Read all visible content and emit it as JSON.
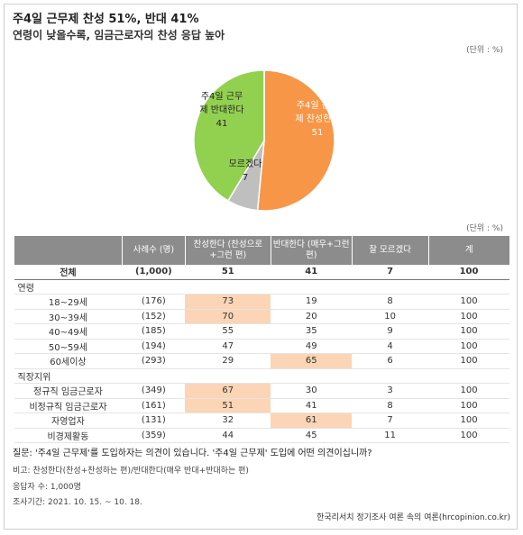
{
  "header": {
    "title": "주4일 근무제 찬성 51%, 반대 41%",
    "subtitle": "연령이 낮을수록, 임금근로자의 찬성 응답 높아",
    "unit": "(단위 : %)"
  },
  "chart_data": {
    "type": "pie",
    "categories": [
      "주4일 근무제 찬성한다",
      "모르겠다",
      "주4일 근무제 반대한다"
    ],
    "values": [
      51,
      7,
      41
    ],
    "colors": [
      "#f79646",
      "#bfbfbf",
      "#92d050"
    ]
  },
  "table": {
    "unit": "(단위 : %)",
    "header": [
      "사례수 (명)",
      "찬성한다 (찬성으로+그런 편)",
      "반대한다 (매우+그런 편)",
      "잘 모르겠다",
      "계"
    ],
    "rows": [
      {
        "label": "전체",
        "cells": [
          "(1,000)",
          "51",
          "41",
          "7",
          "100"
        ]
      },
      {
        "section": "연령"
      },
      {
        "label": "18~29세",
        "cells": [
          "(176)",
          "73",
          "19",
          "8",
          "100"
        ],
        "highlight": [
          1
        ]
      },
      {
        "label": "30~39세",
        "cells": [
          "(152)",
          "70",
          "20",
          "10",
          "100"
        ],
        "highlight": [
          1
        ]
      },
      {
        "label": "40~49세",
        "cells": [
          "(185)",
          "55",
          "35",
          "9",
          "100"
        ]
      },
      {
        "label": "50~59세",
        "cells": [
          "(194)",
          "47",
          "49",
          "4",
          "100"
        ]
      },
      {
        "label": "60세이상",
        "cells": [
          "(293)",
          "29",
          "65",
          "6",
          "100"
        ],
        "highlight": [
          2
        ]
      },
      {
        "section": "직장지위"
      },
      {
        "label": "정규직 임금근로자",
        "cells": [
          "(349)",
          "67",
          "30",
          "3",
          "100"
        ],
        "highlight": [
          1
        ]
      },
      {
        "label": "비정규직 임금근로자",
        "cells": [
          "(161)",
          "51",
          "41",
          "8",
          "100"
        ],
        "highlight": [
          1
        ]
      },
      {
        "label": "자영업자",
        "cells": [
          "(131)",
          "32",
          "61",
          "7",
          "100"
        ],
        "highlight": [
          2
        ]
      },
      {
        "label": "비경제활동",
        "cells": [
          "(359)",
          "44",
          "45",
          "11",
          "100"
        ]
      }
    ]
  },
  "footer": {
    "question": "질문: '주4일 근무제'를 도입하자는 의견이 있습니다. '주4일 근무제' 도입에 어떤 의견이십니까?",
    "note": "비고: 찬성한다(찬성+찬성하는 편)/반대한다(매우 반대+반대하는 편)",
    "respondents": "응답자 수: 1,000명",
    "period": "조사기간: 2021. 10. 15. ~ 10. 18.",
    "source": "한국리서치 정기조사 여론 속의 여론(hrcopinion.co.kr)"
  }
}
